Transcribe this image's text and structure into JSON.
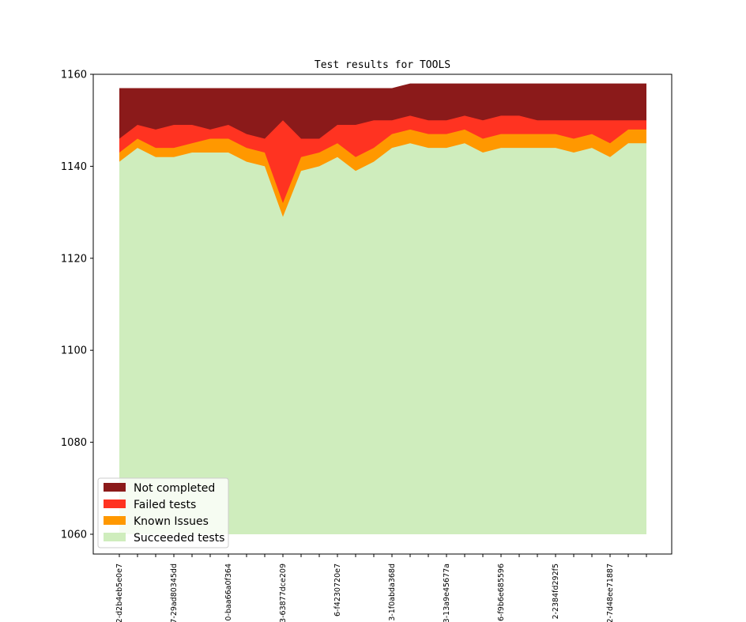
{
  "chart_data": {
    "type": "area",
    "title": "Test results for TOOLS",
    "xlabel": "",
    "ylabel": "",
    "ylim": [
      1055.7,
      1160
    ],
    "yticks": [
      1060,
      1080,
      1100,
      1120,
      1140,
      1160
    ],
    "x_tick_labels": [
      "2-d2b4eb5e0e7",
      "7-29ad80345dd",
      "0-baa66a0f364",
      "3-63877dce209",
      "6-f4230720e7",
      "3-1f0abda368d",
      "3-13a9e45677a",
      "6-f9b6e685596",
      "2-2384fd292f5",
      "2-7d48ee71887"
    ],
    "x_label_every": 3,
    "n_points": 30,
    "baseline": 1060,
    "legend_position": "lower-left",
    "series": [
      {
        "name": "Succeeded tests",
        "color": "#cfedbd",
        "values": [
          1141,
          1144,
          1142,
          1142,
          1143,
          1143,
          1143,
          1141,
          1140,
          1129,
          1139,
          1140,
          1142,
          1139,
          1141,
          1144,
          1145,
          1144,
          1144,
          1145,
          1143,
          1144,
          1144,
          1144,
          1144,
          1143,
          1144,
          1142,
          1145,
          1145
        ]
      },
      {
        "name": "Known Issues",
        "color": "#ff9800",
        "values": [
          1143,
          1146,
          1144,
          1144,
          1145,
          1146,
          1146,
          1144,
          1143,
          1132,
          1142,
          1143,
          1145,
          1142,
          1144,
          1147,
          1148,
          1147,
          1147,
          1148,
          1146,
          1147,
          1147,
          1147,
          1147,
          1146,
          1147,
          1145,
          1148,
          1148
        ]
      },
      {
        "name": "Failed tests",
        "color": "#ff3321",
        "values": [
          1146,
          1149,
          1148,
          1149,
          1149,
          1148,
          1149,
          1147,
          1146,
          1150,
          1146,
          1146,
          1149,
          1149,
          1150,
          1150,
          1151,
          1150,
          1150,
          1151,
          1150,
          1151,
          1151,
          1150,
          1150,
          1150,
          1150,
          1150,
          1150,
          1150
        ]
      },
      {
        "name": "Not completed",
        "color": "#8b1a1a",
        "values": [
          1157,
          1157,
          1157,
          1157,
          1157,
          1157,
          1157,
          1157,
          1157,
          1157,
          1157,
          1157,
          1157,
          1157,
          1157,
          1157,
          1158,
          1158,
          1158,
          1158,
          1158,
          1158,
          1158,
          1158,
          1158,
          1158,
          1158,
          1158,
          1158,
          1158
        ]
      }
    ],
    "legend_order": [
      "Not completed",
      "Failed tests",
      "Known Issues",
      "Succeeded tests"
    ]
  }
}
